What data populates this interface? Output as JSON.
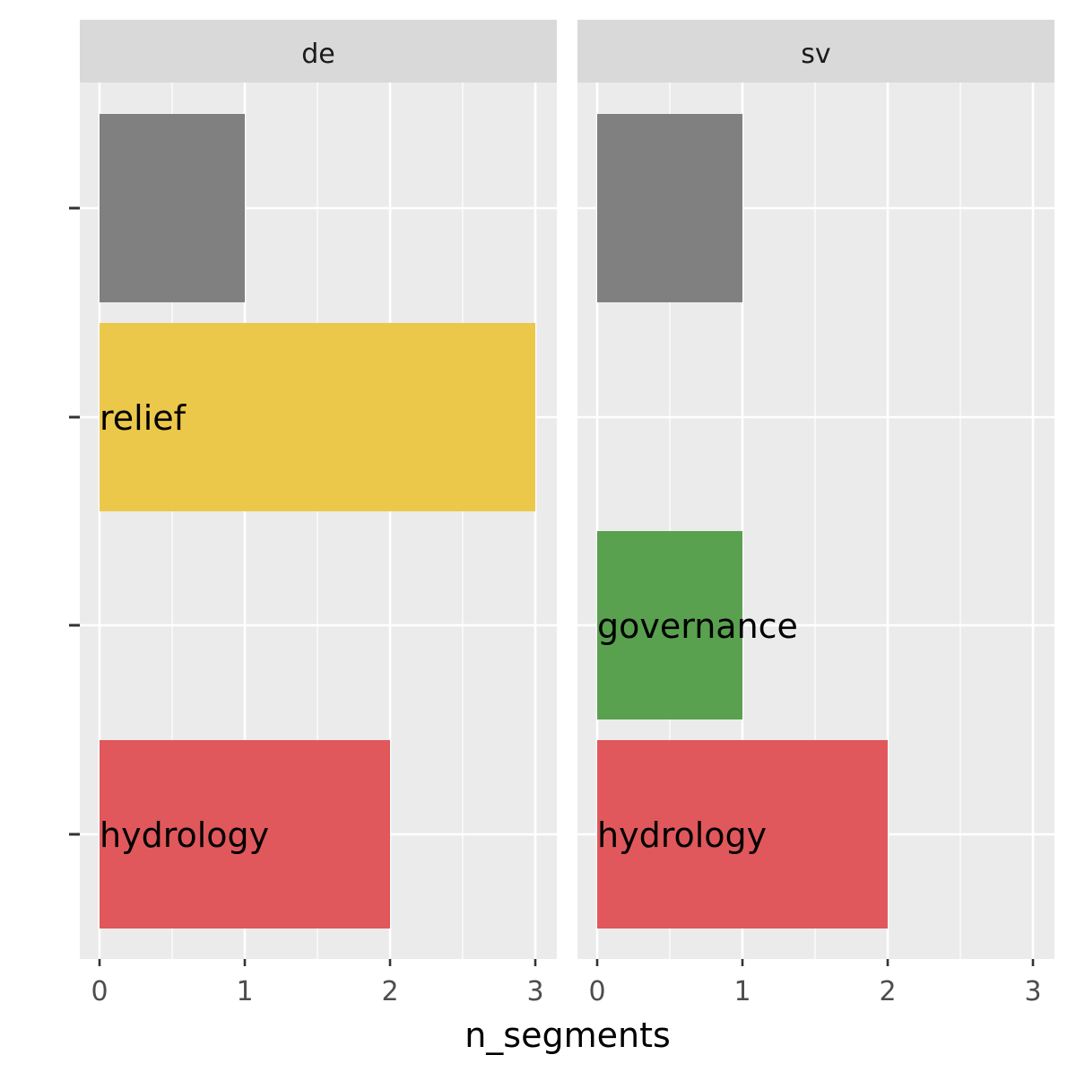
{
  "chart_data": {
    "type": "bar",
    "orientation": "horizontal",
    "faceted": true,
    "xlabel": "n_segments",
    "ylabel": "",
    "xlim": [
      0,
      3
    ],
    "x_ticks": [
      "0",
      "1",
      "2",
      "3"
    ],
    "grid": true,
    "legend": "none",
    "rows": 4,
    "facets": [
      {
        "name": "de",
        "bars": [
          {
            "row": 0,
            "value": 1,
            "label": "",
            "color": "#808080"
          },
          {
            "row": 1,
            "value": 3,
            "label": "relief",
            "color": "#EBC84A"
          },
          {
            "row": 3,
            "value": 2,
            "label": "hydrology",
            "color": "#E0585B"
          }
        ]
      },
      {
        "name": "sv",
        "bars": [
          {
            "row": 0,
            "value": 1,
            "label": "",
            "color": "#808080"
          },
          {
            "row": 2,
            "value": 1,
            "label": "governance",
            "color": "#59A14F"
          },
          {
            "row": 3,
            "value": 2,
            "label": "hydrology",
            "color": "#E0585B"
          }
        ]
      }
    ]
  },
  "colors": {
    "panel_background": "#EBEBEB",
    "strip_background": "#D9D9D9",
    "grid": "#FFFFFF"
  }
}
